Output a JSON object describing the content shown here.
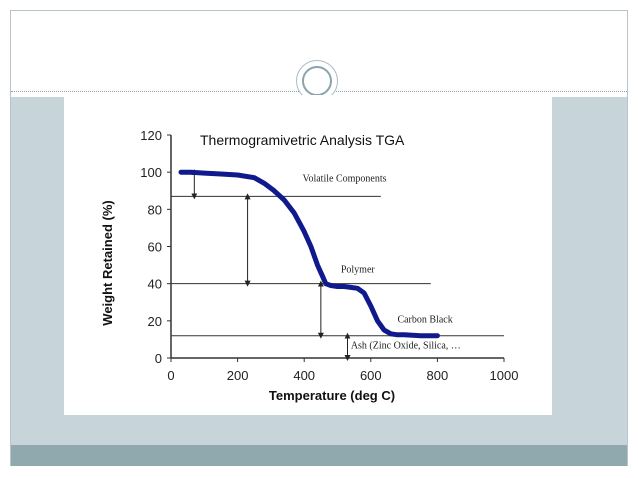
{
  "slide": {
    "colors": {
      "body_band": "#c7d4da",
      "footer_band": "#8fa9ae",
      "ornament_ring": "#8aa4ad"
    }
  },
  "chart_data": {
    "type": "line",
    "title": "Thermogramivetric Analysis TGA",
    "xlabel": "Temperature (deg C)",
    "ylabel": "Weight Retained (%)",
    "xlim": [
      0,
      1000
    ],
    "ylim": [
      0,
      120
    ],
    "x_ticks": [
      "0",
      "200",
      "400",
      "600",
      "800",
      "1000"
    ],
    "y_ticks": [
      "0",
      "20",
      "40",
      "60",
      "80",
      "100",
      "120"
    ],
    "grid": false,
    "legend": "none",
    "line_color": "#101a8c",
    "series": [
      {
        "x": [
          30,
          60,
          100,
          150,
          200,
          250,
          280,
          310,
          340,
          370,
          400,
          420,
          440,
          455,
          465,
          480,
          500,
          520,
          540,
          560,
          580,
          600,
          620,
          640,
          660,
          680,
          700,
          750,
          800
        ],
        "y": [
          100,
          100,
          99.5,
          99,
          98.5,
          97,
          94,
          90,
          85,
          78,
          68,
          60,
          50,
          44,
          40,
          39,
          38.5,
          38.5,
          38,
          37.5,
          35,
          28,
          20,
          15,
          13,
          12.5,
          12.5,
          12,
          12
        ]
      }
    ],
    "reference_lines": [
      {
        "y": 87,
        "x_start": 0,
        "x_end": 630
      },
      {
        "y": 40,
        "x_start": 0,
        "x_end": 780
      },
      {
        "y": 12,
        "x_start": 0,
        "x_end": 1000
      }
    ],
    "annotations": [
      {
        "text": "Volatile Components",
        "x": 395,
        "y": 95
      },
      {
        "text": "Polymer",
        "x": 510,
        "y": 46
      },
      {
        "text": "Carbon Black",
        "x": 680,
        "y": 19
      },
      {
        "text": "Ash (Zinc Oxide, Silica, …",
        "x": 540,
        "y": 5
      }
    ],
    "arrows": [
      {
        "x": 70,
        "y1": 100,
        "y2": 87
      },
      {
        "x": 230,
        "y1": 87,
        "y2": 40
      },
      {
        "x": 450,
        "y1": 40,
        "y2": 12
      },
      {
        "x": 530,
        "y1": 12,
        "y2": 0
      }
    ]
  }
}
